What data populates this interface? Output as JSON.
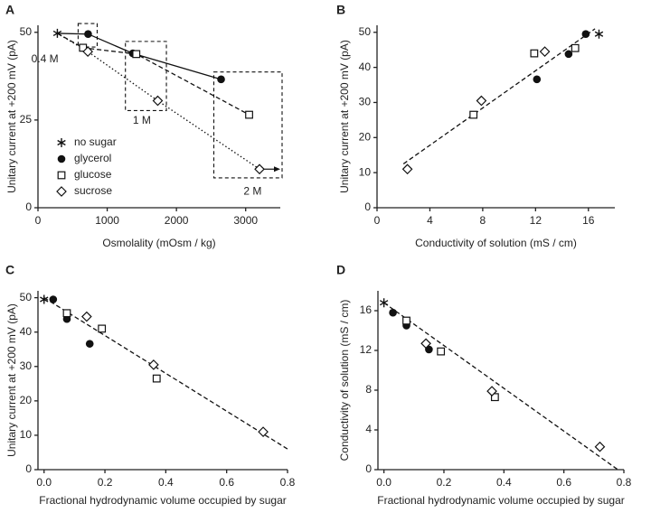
{
  "chart_data": [
    {
      "type": "scatter",
      "label": "A",
      "xlabel": "Osmolality (mOsm / kg)",
      "ylabel": "Unitary current at +200 mV (pA)",
      "xlim": [
        0,
        3500
      ],
      "ylim": [
        0,
        52
      ],
      "xticks": [
        0,
        1000,
        2000,
        3000
      ],
      "yticks": [
        0,
        25,
        50
      ],
      "legend": "lower left",
      "series": [
        {
          "name": "no sugar",
          "marker": "star",
          "x": [
            280
          ],
          "values": [
            49.7
          ]
        },
        {
          "name": "glycerol",
          "marker": "circle",
          "line": "solid",
          "x": [
            724,
            1370,
            2645
          ],
          "values": [
            49.5,
            44,
            36.6
          ]
        },
        {
          "name": "glucose",
          "marker": "square",
          "line": "dashed",
          "x": [
            650,
            1420,
            3050
          ],
          "values": [
            45.6,
            43.8,
            26.5
          ]
        },
        {
          "name": "sucrose",
          "marker": "diamond",
          "line": "dotted",
          "x": [
            720,
            1730,
            3200
          ],
          "values": [
            44.5,
            30.5,
            11
          ]
        }
      ],
      "annotations": [
        "0.4 M",
        "1 M",
        "2 M"
      ]
    },
    {
      "type": "scatter",
      "label": "B",
      "xlabel": "Conductivity of solution (mS / cm)",
      "ylabel": "Unitary current at +200 mV (pA)",
      "xlim": [
        0,
        18
      ],
      "ylim": [
        0,
        52
      ],
      "xticks": [
        0,
        4,
        8,
        12,
        16
      ],
      "yticks": [
        0,
        10,
        20,
        30,
        40,
        50
      ],
      "series": [
        {
          "marker": "star",
          "x": [
            16.8
          ],
          "values": [
            49.5
          ]
        },
        {
          "marker": "circle",
          "x": [
            15.8,
            14.5,
            12.1
          ],
          "values": [
            49.5,
            43.8,
            36.6
          ]
        },
        {
          "marker": "square",
          "x": [
            15.0,
            11.9,
            7.3
          ],
          "values": [
            45.5,
            44,
            26.5
          ]
        },
        {
          "marker": "diamond",
          "x": [
            12.7,
            7.9,
            2.3
          ],
          "values": [
            44.5,
            30.5,
            11
          ]
        }
      ],
      "fit": {
        "x": [
          2,
          16.5
        ],
        "y": [
          12.5,
          51
        ]
      }
    },
    {
      "type": "scatter",
      "label": "C",
      "xlabel": "Fractional hydrodynamic volume occupied by sugar",
      "ylabel": "Unitary current at +200 mV (pA)",
      "xlim": [
        -0.02,
        0.8
      ],
      "ylim": [
        0,
        52
      ],
      "xticks": [
        {
          "value": 0,
          "label": "0.0"
        },
        0.2,
        0.4,
        0.6,
        0.8
      ],
      "yticks": [
        0,
        10,
        20,
        30,
        40,
        50
      ],
      "series": [
        {
          "marker": "star",
          "x": [
            0
          ],
          "values": [
            49.5
          ]
        },
        {
          "marker": "circle",
          "x": [
            0.03,
            0.075,
            0.15
          ],
          "values": [
            49.5,
            43.8,
            36.6
          ]
        },
        {
          "marker": "square",
          "x": [
            0.075,
            0.19,
            0.37
          ],
          "values": [
            45.5,
            41,
            26.5
          ]
        },
        {
          "marker": "diamond",
          "x": [
            0.14,
            0.36,
            0.72
          ],
          "values": [
            44.5,
            30.5,
            11
          ]
        }
      ],
      "fit": {
        "x": [
          0,
          0.8
        ],
        "y": [
          50,
          6
        ]
      }
    },
    {
      "type": "scatter",
      "label": "D",
      "xlabel": "Fractional hydrodynamic volume occupied by sugar",
      "ylabel": "Conductivity of solution (mS / cm)",
      "xlim": [
        -0.02,
        0.8
      ],
      "ylim": [
        0,
        18
      ],
      "xticks": [
        {
          "value": 0,
          "label": "0.0"
        },
        0.2,
        0.4,
        0.6,
        0.8
      ],
      "yticks": [
        0,
        4,
        8,
        12,
        16
      ],
      "series": [
        {
          "marker": "star",
          "x": [
            0
          ],
          "values": [
            16.8
          ]
        },
        {
          "marker": "circle",
          "x": [
            0.03,
            0.075,
            0.15
          ],
          "values": [
            15.8,
            14.5,
            12.1
          ]
        },
        {
          "marker": "square",
          "x": [
            0.075,
            0.19,
            0.37
          ],
          "values": [
            15.0,
            11.9,
            7.3
          ]
        },
        {
          "marker": "diamond",
          "x": [
            0.14,
            0.36,
            0.72
          ],
          "values": [
            12.7,
            7.9,
            2.3
          ]
        }
      ],
      "fit": {
        "x": [
          0,
          0.78
        ],
        "y": [
          16.8,
          0
        ]
      }
    }
  ]
}
